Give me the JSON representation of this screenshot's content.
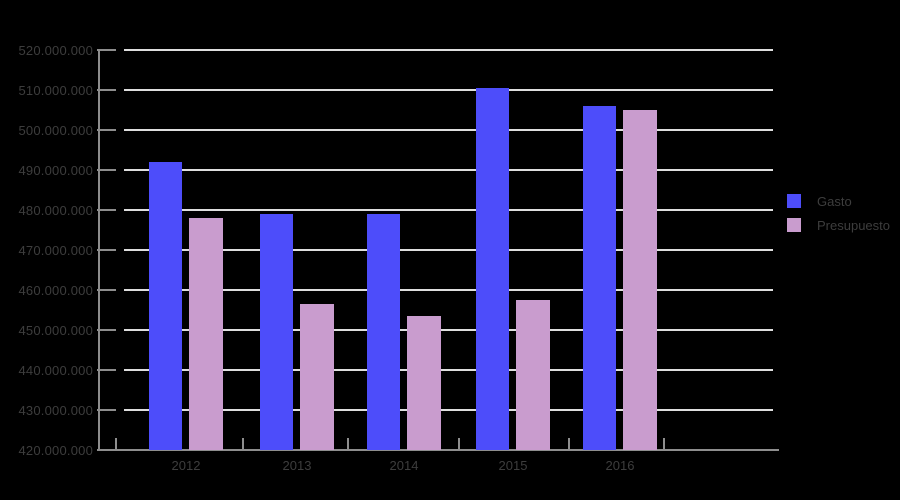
{
  "chart_data": {
    "type": "bar",
    "title": "",
    "categories": [
      "2012",
      "2013",
      "2014",
      "2015",
      "2016"
    ],
    "series": [
      {
        "name": "Gasto",
        "color": "#4d4dfa",
        "values": [
          492000000,
          479000000,
          479000000,
          510500000,
          506000000
        ]
      },
      {
        "name": "Presupuesto",
        "color": "#c99cce",
        "values": [
          478000000,
          456500000,
          453500000,
          457500000,
          505000000
        ]
      }
    ],
    "xlabel": "",
    "ylabel": "",
    "ylim": [
      420000000,
      520000000
    ],
    "ytick_step": 10000000,
    "ytick_labels": [
      "520.000.000",
      "510.000.000",
      "500.000.000",
      "490.000.000",
      "480.000.000",
      "470.000.000",
      "460.000.000",
      "450.000.000",
      "440.000.000",
      "430.000.000",
      "420.000.000"
    ],
    "grid": "horizontal",
    "legend_position": "right"
  },
  "legend": {
    "items": [
      {
        "label": "Gasto",
        "color": "#4d4dfa"
      },
      {
        "label": "Presupuesto",
        "color": "#c99cce"
      }
    ]
  },
  "colors": {
    "background": "#000000",
    "gridline": "#dedede",
    "axis": "#8e8e8e",
    "text": "#3d3d3d",
    "gasto": "#4d4dfa",
    "presupuesto": "#c99cce"
  }
}
